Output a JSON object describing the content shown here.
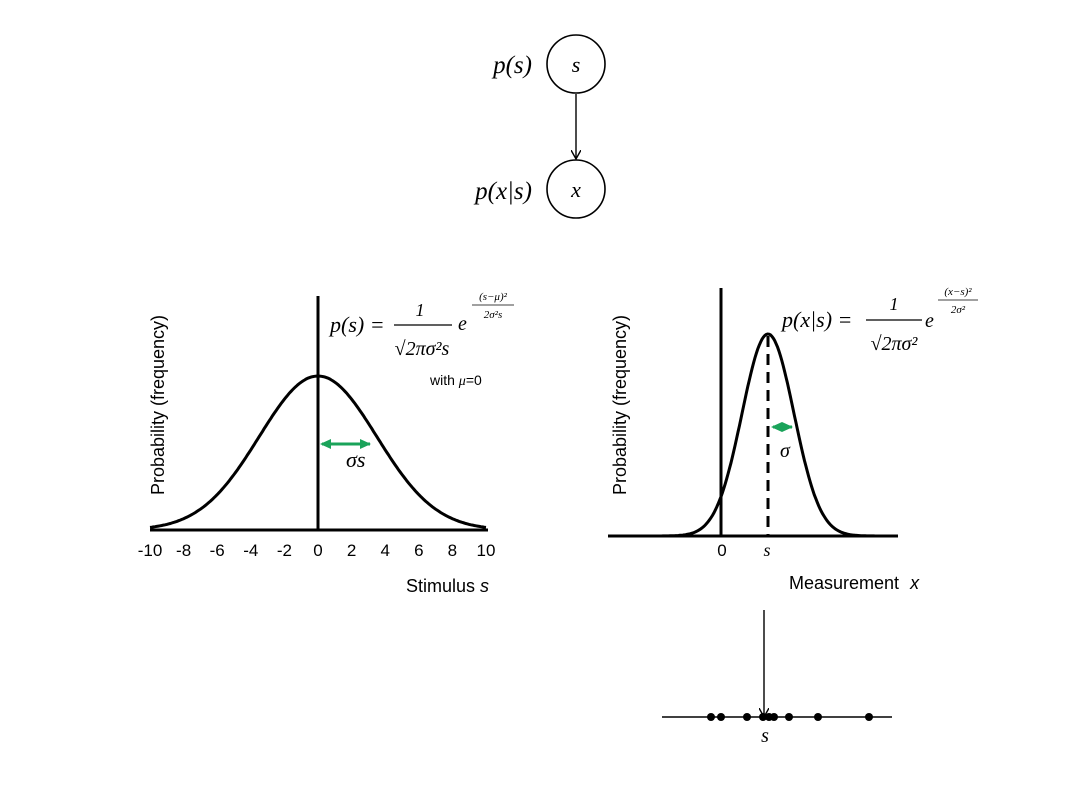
{
  "graphical_model": {
    "node_s": {
      "label": "s",
      "dist_label": "p(s)"
    },
    "node_x": {
      "label": "x",
      "dist_label": "p(x|s)"
    }
  },
  "prior_panel": {
    "ylabel": "Probability (frequency)",
    "xlabel_prefix": "Stimulus ",
    "xlabel_var": "s",
    "x_ticks": [
      "-10",
      "-8",
      "-6",
      "-4",
      "-2",
      "0",
      "2",
      "4",
      "6",
      "8",
      "10"
    ],
    "x_range": [
      -10,
      10
    ],
    "mu": 0,
    "sigma": 3.5,
    "formula": {
      "lhs": "p(s) =",
      "numerator": "1",
      "denominator": "√2πσ²s",
      "base": "e",
      "exp_num": "(s−μ)²",
      "exp_den": "2σ²s"
    },
    "note_prefix": "with ",
    "note_var": "μ",
    "note_suffix": "=0",
    "sigma_label": "σs",
    "arrow_color": "#1aa35a"
  },
  "likelihood_panel": {
    "ylabel": "Probability (frequency)",
    "xlabel_prefix": "Measurement ",
    "xlabel_var": "x",
    "tick_zero": "0",
    "tick_s": "s",
    "formula": {
      "lhs": "p(x|s) =",
      "numerator": "1",
      "denominator": "√2πσ²",
      "base": "e",
      "exp_num": "(x−s)²",
      "exp_den": "2σ²"
    },
    "sigma_label": "σ",
    "arrow_color": "#1aa35a"
  },
  "measurement_line": {
    "label": "s"
  }
}
